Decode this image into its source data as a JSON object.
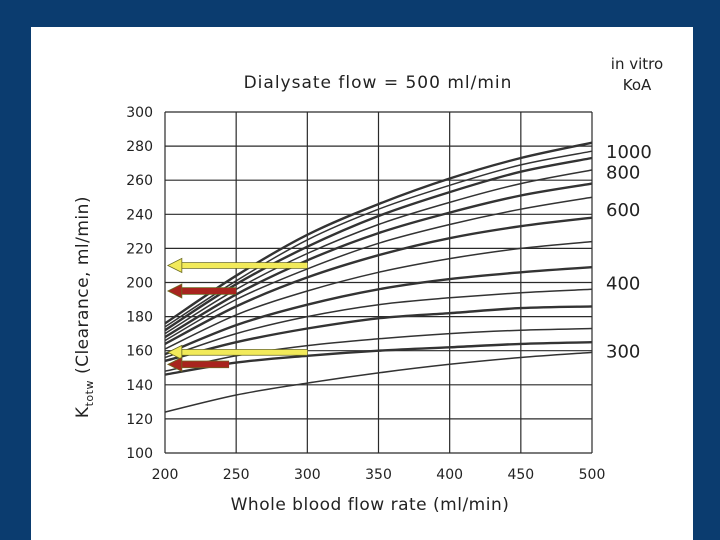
{
  "colors": {
    "background": "#0b3c6f",
    "panel": "#ffffff",
    "grid": "#2a2a2a",
    "curve": "#333333",
    "yellow_arrow": "#f2ea5a",
    "red_arrow": "#a8241e"
  },
  "chart_data": {
    "type": "line",
    "title": "Dialysate flow = 500 ml/min",
    "xlabel": "Whole blood flow rate (ml/min)",
    "ylabel_main": "K",
    "ylabel_sub": "totw",
    "ylabel_rest": "(Clearance, ml/min)",
    "xlim": [
      200,
      500
    ],
    "ylim": [
      100,
      300
    ],
    "x_ticks": [
      200,
      250,
      300,
      350,
      400,
      450,
      500
    ],
    "y_ticks": [
      100,
      120,
      140,
      160,
      180,
      200,
      220,
      240,
      260,
      280,
      300
    ],
    "legend_title_line1": "in vitro",
    "legend_title_line2": "KoA",
    "curve_labels": [
      {
        "text": "1000",
        "y": 277
      },
      {
        "text": "800",
        "y": 265
      },
      {
        "text": "600",
        "y": 243
      },
      {
        "text": "400",
        "y": 200
      },
      {
        "text": "300",
        "y": 160
      }
    ],
    "series": [
      {
        "x": [
          200,
          250,
          300,
          350,
          400,
          450,
          500
        ],
        "values": [
          176,
          204,
          228,
          246,
          261,
          273,
          282
        ]
      },
      {
        "x": [
          200,
          250,
          300,
          350,
          400,
          450,
          500
        ],
        "values": [
          174,
          201,
          225,
          243,
          257,
          269,
          277
        ]
      },
      {
        "x": [
          200,
          250,
          300,
          350,
          400,
          450,
          500
        ],
        "values": [
          172,
          199,
          221,
          239,
          253,
          265,
          273
        ]
      },
      {
        "x": [
          200,
          250,
          300,
          350,
          400,
          450,
          500
        ],
        "values": [
          170,
          196,
          217,
          234,
          247,
          258,
          266
        ]
      },
      {
        "x": [
          200,
          250,
          300,
          350,
          400,
          450,
          500
        ],
        "values": [
          168,
          193,
          213,
          229,
          241,
          251,
          258
        ]
      },
      {
        "x": [
          200,
          250,
          300,
          350,
          400,
          450,
          500
        ],
        "values": [
          166,
          190,
          208,
          223,
          234,
          243,
          250
        ]
      },
      {
        "x": [
          200,
          250,
          300,
          350,
          400,
          450,
          500
        ],
        "values": [
          164,
          186,
          203,
          216,
          226,
          233,
          238
        ]
      },
      {
        "x": [
          200,
          250,
          300,
          350,
          400,
          450,
          500
        ],
        "values": [
          161,
          181,
          195,
          206,
          214,
          220,
          224
        ]
      },
      {
        "x": [
          200,
          250,
          300,
          350,
          400,
          450,
          500
        ],
        "values": [
          158,
          175,
          187,
          196,
          202,
          206,
          209
        ]
      },
      {
        "x": [
          200,
          250,
          300,
          350,
          400,
          450,
          500
        ],
        "values": [
          156,
          170,
          180,
          187,
          191,
          194,
          196
        ]
      },
      {
        "x": [
          200,
          250,
          300,
          350,
          400,
          450,
          500
        ],
        "values": [
          154,
          165,
          173,
          179,
          182,
          185,
          186
        ]
      },
      {
        "x": [
          200,
          250,
          300,
          350,
          400,
          450,
          500
        ],
        "values": [
          148,
          157,
          163,
          167,
          170,
          172,
          173
        ]
      },
      {
        "x": [
          200,
          250,
          300,
          350,
          400,
          450,
          500
        ],
        "values": [
          146,
          153,
          157,
          160,
          162,
          164,
          165
        ]
      },
      {
        "x": [
          200,
          250,
          300,
          350,
          400,
          450,
          500
        ],
        "values": [
          124,
          134,
          141,
          147,
          152,
          156,
          159
        ]
      }
    ],
    "annotations": [
      {
        "type": "yellow-arrow",
        "y": 210,
        "x_from": 300,
        "x_to": 202
      },
      {
        "type": "red-arrow",
        "y": 195,
        "x_from": 250,
        "x_to": 202
      },
      {
        "type": "yellow-arrow",
        "y": 159,
        "x_from": 300,
        "x_to": 202
      },
      {
        "type": "red-arrow",
        "y": 152,
        "x_from": 245,
        "x_to": 202
      }
    ],
    "grid": true
  }
}
